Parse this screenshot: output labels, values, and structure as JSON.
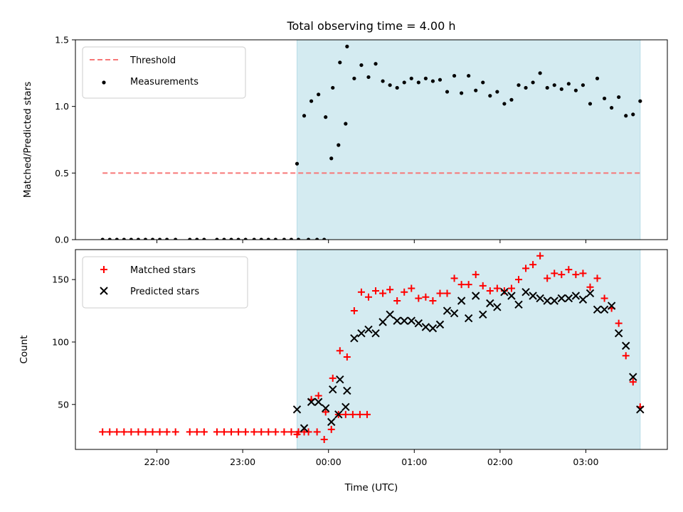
{
  "title": "Total observing time = 4.00 h",
  "chart_data": [
    {
      "type": "scatter",
      "ylabel": "Matched/Predicted stars",
      "xlabel": "",
      "x_unit": "minutes relative to 00:00 UTC",
      "xlim": [
        -177,
        237
      ],
      "ylim": [
        0,
        1.5
      ],
      "yticks": [
        0.0,
        0.5,
        1.0,
        1.5
      ],
      "ytick_labels": [
        "0.0",
        "0.5",
        "1.0",
        "1.5"
      ],
      "shaded_range": [
        -22,
        218
      ],
      "shade_color": "#d4ebf1",
      "legend_position": "top-left",
      "threshold": {
        "name": "Threshold",
        "y": 0.5,
        "x_range": [
          -158,
          218
        ],
        "color": "#f77777"
      },
      "series": [
        {
          "name": "Measurements",
          "marker": "dot",
          "color": "#000000",
          "points": [
            [
              -158,
              0
            ],
            [
              -153,
              0
            ],
            [
              -148,
              0
            ],
            [
              -143,
              0
            ],
            [
              -138,
              0
            ],
            [
              -133,
              0
            ],
            [
              -128,
              0
            ],
            [
              -123,
              0
            ],
            [
              -118,
              0
            ],
            [
              -113,
              0
            ],
            [
              -107,
              0
            ],
            [
              -97,
              0
            ],
            [
              -92,
              0
            ],
            [
              -87,
              0
            ],
            [
              -78,
              0
            ],
            [
              -73,
              0
            ],
            [
              -68,
              0
            ],
            [
              -63,
              0
            ],
            [
              -58,
              0
            ],
            [
              -52,
              0
            ],
            [
              -47,
              0
            ],
            [
              -42,
              0
            ],
            [
              -37,
              0
            ],
            [
              -31,
              0
            ],
            [
              -26,
              0
            ],
            [
              -21,
              0
            ],
            [
              -14,
              0
            ],
            [
              -8,
              0
            ],
            [
              -3,
              0
            ],
            [
              2,
              0.61
            ],
            [
              7,
              0.71
            ],
            [
              12,
              0.87
            ],
            [
              -22,
              0.57
            ],
            [
              -17,
              0.93
            ],
            [
              -12,
              1.04
            ],
            [
              -7,
              1.09
            ],
            [
              -2,
              0.92
            ],
            [
              3,
              1.14
            ],
            [
              8,
              1.33
            ],
            [
              13,
              1.45
            ],
            [
              18,
              1.21
            ],
            [
              23,
              1.31
            ],
            [
              28,
              1.22
            ],
            [
              33,
              1.32
            ],
            [
              38,
              1.19
            ],
            [
              43,
              1.16
            ],
            [
              48,
              1.14
            ],
            [
              53,
              1.18
            ],
            [
              58,
              1.21
            ],
            [
              63,
              1.18
            ],
            [
              68,
              1.21
            ],
            [
              73,
              1.19
            ],
            [
              78,
              1.2
            ],
            [
              83,
              1.11
            ],
            [
              88,
              1.23
            ],
            [
              93,
              1.1
            ],
            [
              98,
              1.23
            ],
            [
              103,
              1.12
            ],
            [
              108,
              1.18
            ],
            [
              113,
              1.08
            ],
            [
              118,
              1.11
            ],
            [
              123,
              1.02
            ],
            [
              128,
              1.05
            ],
            [
              133,
              1.16
            ],
            [
              138,
              1.14
            ],
            [
              143,
              1.18
            ],
            [
              148,
              1.25
            ],
            [
              153,
              1.14
            ],
            [
              158,
              1.16
            ],
            [
              163,
              1.13
            ],
            [
              168,
              1.17
            ],
            [
              173,
              1.12
            ],
            [
              178,
              1.16
            ],
            [
              183,
              1.02
            ],
            [
              188,
              1.21
            ],
            [
              193,
              1.06
            ],
            [
              198,
              0.99
            ],
            [
              203,
              1.07
            ],
            [
              208,
              0.93
            ],
            [
              213,
              0.94
            ],
            [
              218,
              1.04
            ]
          ]
        }
      ]
    },
    {
      "type": "scatter",
      "ylabel": "Count",
      "xlabel": "Time (UTC)",
      "x_unit": "minutes relative to 00:00 UTC",
      "xlim": [
        -177,
        237
      ],
      "ylim": [
        14,
        174
      ],
      "yticks": [
        50,
        100,
        150
      ],
      "ytick_labels": [
        "50",
        "100",
        "150"
      ],
      "xticks": [
        -120,
        -60,
        0,
        60,
        120,
        180
      ],
      "xtick_labels": [
        "22:00",
        "23:00",
        "00:00",
        "01:00",
        "02:00",
        "03:00"
      ],
      "shaded_range": [
        -22,
        218
      ],
      "shade_color": "#d4ebf1",
      "legend_position": "top-left",
      "series": [
        {
          "name": "Matched stars",
          "marker": "plus",
          "color": "#ff0000",
          "points": [
            [
              -158,
              28
            ],
            [
              -153,
              28
            ],
            [
              -148,
              28
            ],
            [
              -143,
              28
            ],
            [
              -138,
              28
            ],
            [
              -133,
              28
            ],
            [
              -128,
              28
            ],
            [
              -123,
              28
            ],
            [
              -118,
              28
            ],
            [
              -113,
              28
            ],
            [
              -107,
              28
            ],
            [
              -97,
              28
            ],
            [
              -92,
              28
            ],
            [
              -87,
              28
            ],
            [
              -78,
              28
            ],
            [
              -73,
              28
            ],
            [
              -68,
              28
            ],
            [
              -63,
              28
            ],
            [
              -58,
              28
            ],
            [
              -52,
              28
            ],
            [
              -47,
              28
            ],
            [
              -42,
              28
            ],
            [
              -37,
              28
            ],
            [
              -31,
              28
            ],
            [
              -26,
              28
            ],
            [
              -21,
              28
            ],
            [
              -14,
              28
            ],
            [
              -8,
              28
            ],
            [
              -3,
              22
            ],
            [
              2,
              30
            ],
            [
              7,
              42
            ],
            [
              12,
              42
            ],
            [
              17,
              42
            ],
            [
              22,
              42
            ],
            [
              27,
              42
            ],
            [
              -22,
              26
            ],
            [
              -17,
              28
            ],
            [
              -12,
              54
            ],
            [
              -7,
              57
            ],
            [
              -2,
              44
            ],
            [
              3,
              71
            ],
            [
              8,
              93
            ],
            [
              13,
              88
            ],
            [
              18,
              125
            ],
            [
              23,
              140
            ],
            [
              28,
              136
            ],
            [
              33,
              141
            ],
            [
              38,
              139
            ],
            [
              43,
              142
            ],
            [
              48,
              133
            ],
            [
              53,
              140
            ],
            [
              58,
              143
            ],
            [
              63,
              135
            ],
            [
              68,
              136
            ],
            [
              73,
              133
            ],
            [
              78,
              139
            ],
            [
              83,
              139
            ],
            [
              88,
              151
            ],
            [
              93,
              146
            ],
            [
              98,
              146
            ],
            [
              103,
              154
            ],
            [
              108,
              145
            ],
            [
              113,
              141
            ],
            [
              118,
              143
            ],
            [
              123,
              141
            ],
            [
              128,
              143
            ],
            [
              133,
              150
            ],
            [
              138,
              159
            ],
            [
              143,
              162
            ],
            [
              148,
              169
            ],
            [
              153,
              151
            ],
            [
              158,
              155
            ],
            [
              163,
              154
            ],
            [
              168,
              158
            ],
            [
              173,
              154
            ],
            [
              178,
              155
            ],
            [
              183,
              144
            ],
            [
              188,
              151
            ],
            [
              193,
              135
            ],
            [
              198,
              127
            ],
            [
              203,
              115
            ],
            [
              208,
              89
            ],
            [
              213,
              68
            ],
            [
              218,
              48
            ]
          ]
        },
        {
          "name": "Predicted stars",
          "marker": "x",
          "color": "#000000",
          "points": [
            [
              2,
              36
            ],
            [
              7,
              42
            ],
            [
              12,
              48
            ],
            [
              -22,
              46
            ],
            [
              -17,
              31
            ],
            [
              -12,
              52
            ],
            [
              -7,
              52
            ],
            [
              -2,
              47
            ],
            [
              3,
              62
            ],
            [
              8,
              70
            ],
            [
              13,
              61
            ],
            [
              18,
              103
            ],
            [
              23,
              107
            ],
            [
              28,
              110
            ],
            [
              33,
              107
            ],
            [
              38,
              116
            ],
            [
              43,
              122
            ],
            [
              48,
              117
            ],
            [
              53,
              117
            ],
            [
              58,
              117
            ],
            [
              63,
              115
            ],
            [
              68,
              112
            ],
            [
              73,
              111
            ],
            [
              78,
              114
            ],
            [
              83,
              125
            ],
            [
              88,
              123
            ],
            [
              93,
              133
            ],
            [
              98,
              119
            ],
            [
              103,
              137
            ],
            [
              108,
              122
            ],
            [
              113,
              131
            ],
            [
              118,
              128
            ],
            [
              123,
              140
            ],
            [
              128,
              137
            ],
            [
              133,
              130
            ],
            [
              138,
              140
            ],
            [
              143,
              137
            ],
            [
              148,
              135
            ],
            [
              153,
              133
            ],
            [
              158,
              133
            ],
            [
              163,
              135
            ],
            [
              168,
              135
            ],
            [
              173,
              137
            ],
            [
              178,
              134
            ],
            [
              183,
              139
            ],
            [
              188,
              126
            ],
            [
              193,
              126
            ],
            [
              198,
              129
            ],
            [
              203,
              107
            ],
            [
              208,
              97
            ],
            [
              213,
              72
            ],
            [
              218,
              46
            ]
          ]
        }
      ]
    }
  ]
}
